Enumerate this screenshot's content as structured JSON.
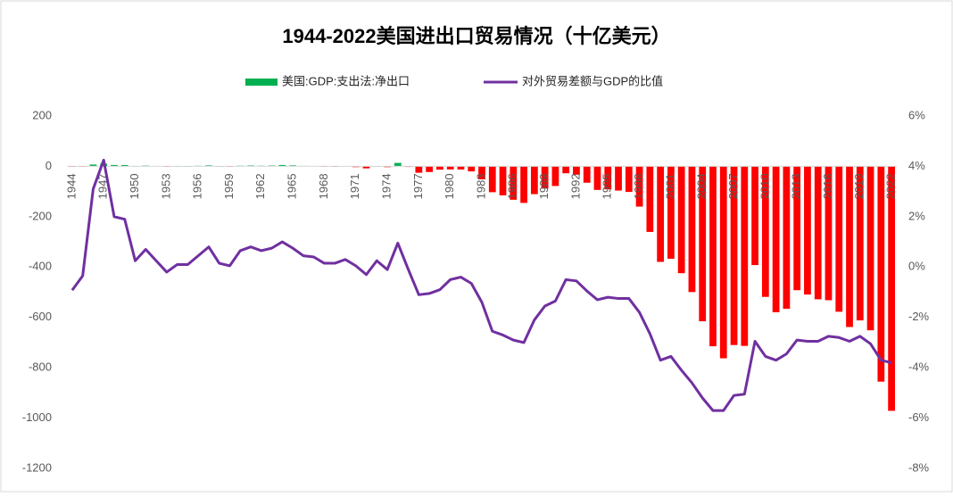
{
  "chart_data": {
    "type": "bar_line",
    "title": "1944-2022美国进出口贸易情况（十亿美元）",
    "categories": [
      "1944",
      null,
      null,
      "1947",
      null,
      null,
      "1950",
      null,
      null,
      "1953",
      null,
      null,
      "1956",
      null,
      null,
      "1959",
      null,
      null,
      "1962",
      null,
      null,
      "1965",
      null,
      null,
      "1968",
      null,
      null,
      "1971",
      null,
      null,
      "1974",
      null,
      null,
      "1977",
      null,
      null,
      "1980",
      null,
      null,
      "1983",
      null,
      null,
      "1986",
      null,
      null,
      "1989",
      null,
      null,
      "1992",
      null,
      null,
      "1995",
      null,
      null,
      "1998",
      null,
      null,
      "2001",
      null,
      null,
      "2004",
      null,
      null,
      "2007",
      null,
      null,
      "2010",
      null,
      null,
      "2013",
      null,
      null,
      "2016",
      null,
      null,
      "2019",
      null,
      null,
      "2022"
    ],
    "series": [
      {
        "name": "美国:GDP:支出法:净出口",
        "type": "bar",
        "color": "#00b050",
        "negative_color": "#ff0000",
        "values": [
          -2.1,
          -0.8,
          7.2,
          10.8,
          5.5,
          5.2,
          0.7,
          2.9,
          1.4,
          -0.7,
          0.5,
          0.4,
          2.3,
          3.8,
          0.4,
          -1.6,
          2.4,
          3.4,
          2.4,
          3.3,
          5.5,
          3.9,
          1.9,
          1.4,
          -1.4,
          -1.3,
          1.2,
          -3.0,
          -8.0,
          0.6,
          -3.1,
          13.6,
          -2.3,
          -25.4,
          -22.5,
          -13.1,
          -12.2,
          -12.5,
          -20.0,
          -51.6,
          -102.7,
          -115.2,
          -132.7,
          -145.2,
          -110.4,
          -88.2,
          -78.0,
          -27.5,
          -33.2,
          -65.0,
          -93.6,
          -91.4,
          -96.2,
          -101.6,
          -159.9,
          -260.5,
          -379.5,
          -367.0,
          -424.4,
          -499.4,
          -615.4,
          -714.6,
          -762.4,
          -709.8,
          -713.2,
          -392.2,
          -518.5,
          -579.5,
          -565.7,
          -492.0,
          -509.1,
          -528.1,
          -531.7,
          -577.5,
          -638.2,
          -611.9,
          -651.2,
          -855.2,
          -971.1
        ]
      },
      {
        "name": "对外贸易差额与GDP的比值",
        "type": "line",
        "axis": "y2",
        "color": "#7030a0",
        "values": [
          -0.92,
          -0.35,
          3.1,
          4.25,
          2.0,
          1.9,
          0.25,
          0.7,
          0.25,
          -0.2,
          0.1,
          0.1,
          0.45,
          0.8,
          0.15,
          0.05,
          0.65,
          0.8,
          0.65,
          0.75,
          1.0,
          0.75,
          0.45,
          0.4,
          0.15,
          0.15,
          0.3,
          0.05,
          -0.3,
          0.25,
          -0.1,
          0.95,
          -0.1,
          -1.1,
          -1.05,
          -0.9,
          -0.5,
          -0.4,
          -0.65,
          -1.4,
          -2.55,
          -2.7,
          -2.9,
          -3.0,
          -2.1,
          -1.55,
          -1.35,
          -0.5,
          -0.55,
          -0.95,
          -1.3,
          -1.2,
          -1.25,
          -1.25,
          -1.8,
          -2.65,
          -3.7,
          -3.55,
          -4.1,
          -4.6,
          -5.2,
          -5.7,
          -5.7,
          -5.1,
          -5.05,
          -2.95,
          -3.55,
          -3.7,
          -3.45,
          -2.9,
          -2.95,
          -2.95,
          -2.75,
          -2.8,
          -2.95,
          -2.75,
          -3.05,
          -3.7,
          -3.8
        ]
      }
    ],
    "ylim": [
      -1200,
      200
    ],
    "yticks": [
      200,
      0,
      -200,
      -400,
      -600,
      -800,
      -1000,
      -1200
    ],
    "y2lim": [
      -8,
      6
    ],
    "y2ticks": [
      {
        "value": 6,
        "label": "6%"
      },
      {
        "value": 4,
        "label": "4%"
      },
      {
        "value": 2,
        "label": "2%"
      },
      {
        "value": 0,
        "label": "0%"
      },
      {
        "value": -2,
        "label": "-2%"
      },
      {
        "value": -4,
        "label": "-4%"
      },
      {
        "value": -6,
        "label": "-6%"
      },
      {
        "value": -8,
        "label": "-8%"
      }
    ],
    "legend": "top",
    "grid": false
  }
}
